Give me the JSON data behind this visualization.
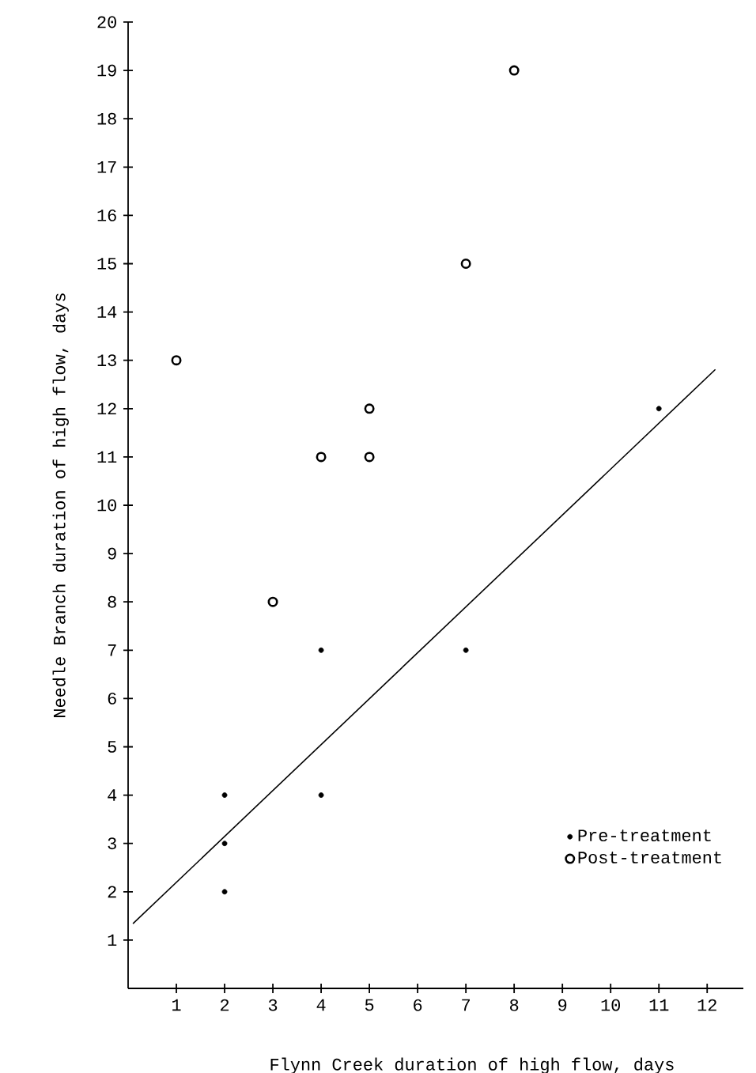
{
  "chart_data": {
    "type": "scatter",
    "xlabel": "Flynn Creek duration of high flow, days",
    "ylabel": "Needle Branch duration of high flow, days",
    "xlim": [
      0,
      12.75
    ],
    "ylim": [
      0,
      20
    ],
    "xticks": [
      1,
      2,
      3,
      4,
      5,
      6,
      7,
      8,
      9,
      10,
      11,
      12
    ],
    "yticks": [
      1,
      2,
      3,
      4,
      5,
      6,
      7,
      8,
      9,
      10,
      11,
      12,
      13,
      14,
      15,
      16,
      17,
      18,
      19,
      20
    ],
    "grid": false,
    "legend": "bottom right",
    "marker": "circle",
    "series": [
      {
        "name": "Pre-treatment",
        "color": "#000000",
        "x": [
          2,
          2,
          2,
          4,
          4,
          7,
          11
        ],
        "values": [
          4,
          3,
          2,
          7,
          4,
          7,
          12
        ]
      },
      {
        "name": "Post-treatment",
        "color": "#000000",
        "x": [
          1,
          3,
          4,
          5,
          5,
          7,
          8
        ],
        "values": [
          13,
          8,
          11,
          12,
          11,
          15,
          19
        ]
      },
      {
        "type": "line",
        "color": "#000000",
        "line_style": "solid",
        "marker": "none",
        "x": [
          0.1,
          12.17
        ],
        "values": [
          1.34,
          12.81
        ]
      }
    ]
  }
}
